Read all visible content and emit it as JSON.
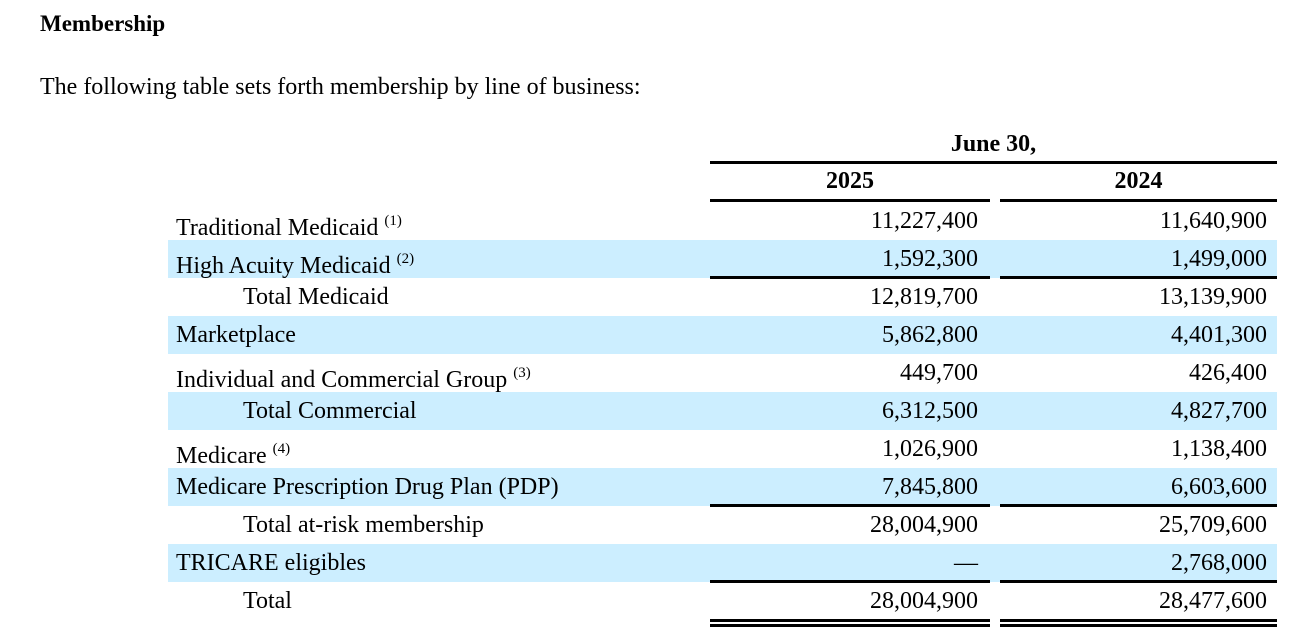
{
  "title": "Membership",
  "intro": "The following table sets forth membership by line of business:",
  "table": {
    "period_header": "June 30,",
    "columns": [
      "2025",
      "2024"
    ],
    "rows": [
      {
        "label": "Traditional Medicaid",
        "note": "(1)",
        "indent": false,
        "shaded": false,
        "v2025": "11,227,400",
        "v2024": "11,640,900"
      },
      {
        "label": "High Acuity Medicaid",
        "note": "(2)",
        "indent": false,
        "shaded": true,
        "v2025": "1,592,300",
        "v2024": "1,499,000",
        "rule_below": true
      },
      {
        "label": "Total Medicaid",
        "note": "",
        "indent": true,
        "shaded": false,
        "v2025": "12,819,700",
        "v2024": "13,139,900"
      },
      {
        "label": "Marketplace",
        "note": "",
        "indent": false,
        "shaded": true,
        "v2025": "5,862,800",
        "v2024": "4,401,300"
      },
      {
        "label": "Individual and Commercial Group",
        "note": "(3)",
        "indent": false,
        "shaded": false,
        "v2025": "449,700",
        "v2024": "426,400"
      },
      {
        "label": "Total Commercial",
        "note": "",
        "indent": true,
        "shaded": true,
        "v2025": "6,312,500",
        "v2024": "4,827,700"
      },
      {
        "label": "Medicare",
        "note": "(4)",
        "indent": false,
        "shaded": false,
        "v2025": "1,026,900",
        "v2024": "1,138,400"
      },
      {
        "label": "Medicare Prescription Drug Plan (PDP)",
        "note": "",
        "indent": false,
        "shaded": true,
        "v2025": "7,845,800",
        "v2024": "6,603,600",
        "rule_below": true
      },
      {
        "label": "Total at-risk membership",
        "note": "",
        "indent": true,
        "shaded": false,
        "v2025": "28,004,900",
        "v2024": "25,709,600"
      },
      {
        "label": "TRICARE eligibles",
        "note": "",
        "indent": false,
        "shaded": true,
        "v2025": "—",
        "v2024": "2,768,000",
        "rule_below": true
      },
      {
        "label": "Total",
        "note": "",
        "indent": true,
        "shaded": false,
        "v2025": "28,004,900",
        "v2024": "28,477,600",
        "double_rule_below": true
      }
    ]
  }
}
